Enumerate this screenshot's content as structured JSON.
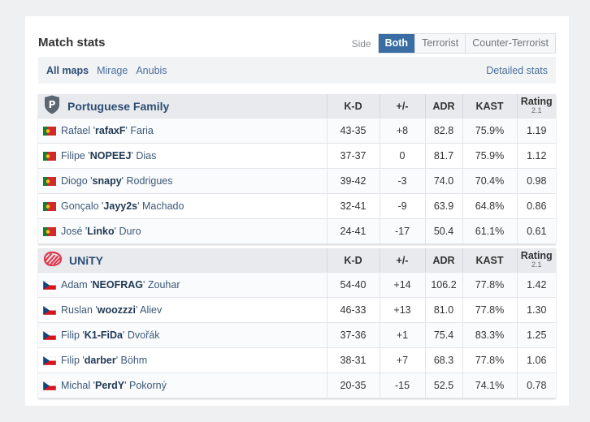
{
  "header": {
    "title": "Match stats"
  },
  "side_filter": {
    "label": "Side",
    "options": [
      "Both",
      "Terrorist",
      "Counter-Terrorist"
    ],
    "active": "Both"
  },
  "maps": {
    "items": [
      "All maps",
      "Mirage",
      "Anubis"
    ],
    "active": "All maps",
    "detailed_link": "Detailed stats"
  },
  "columns": {
    "kd": "K-D",
    "pm": "+/-",
    "adr": "ADR",
    "kast": "KAST",
    "rating": "Rating",
    "rating_version": "2.1"
  },
  "teams": [
    {
      "name": "Portuguese Family",
      "logo": "portuguese-family-shield-logo",
      "players": [
        {
          "first": "Rafael '",
          "nick": "rafaxF",
          "last": "' Faria",
          "flag": "pt-flag",
          "kd": "43-35",
          "pm": "+8",
          "adr": "82.8",
          "kast": "75.9%",
          "rating": "1.19"
        },
        {
          "first": "Filipe '",
          "nick": "NOPEEJ",
          "last": "' Dias",
          "flag": "pt-flag",
          "kd": "37-37",
          "pm": "0",
          "adr": "81.7",
          "kast": "75.9%",
          "rating": "1.12"
        },
        {
          "first": "Diogo '",
          "nick": "snapy",
          "last": "' Rodrigues",
          "flag": "pt-flag",
          "kd": "39-42",
          "pm": "-3",
          "adr": "74.0",
          "kast": "70.4%",
          "rating": "0.98"
        },
        {
          "first": "Gonçalo '",
          "nick": "Jayy2s",
          "last": "' Machado",
          "flag": "pt-flag",
          "kd": "32-41",
          "pm": "-9",
          "adr": "63.9",
          "kast": "64.8%",
          "rating": "0.86"
        },
        {
          "first": "José '",
          "nick": "Linko",
          "last": "' Duro",
          "flag": "pt-flag",
          "kd": "24-41",
          "pm": "-17",
          "adr": "50.4",
          "kast": "61.1%",
          "rating": "0.61"
        }
      ]
    },
    {
      "name": "UNiTY",
      "logo": "unity-logo",
      "players": [
        {
          "first": "Adam '",
          "nick": "NEOFRAG",
          "last": "' Zouhar",
          "flag": "cz-flag",
          "kd": "54-40",
          "pm": "+14",
          "adr": "106.2",
          "kast": "77.8%",
          "rating": "1.42"
        },
        {
          "first": "Ruslan '",
          "nick": "woozzzi",
          "last": "' Aliev",
          "flag": "cz-flag",
          "kd": "46-33",
          "pm": "+13",
          "adr": "81.0",
          "kast": "77.8%",
          "rating": "1.30"
        },
        {
          "first": "Filip '",
          "nick": "K1-FiDa",
          "last": "' Dvořák",
          "flag": "cz-flag",
          "kd": "37-36",
          "pm": "+1",
          "adr": "75.4",
          "kast": "83.3%",
          "rating": "1.25"
        },
        {
          "first": "Filip '",
          "nick": "darber",
          "last": "' Böhm",
          "flag": "cz-flag",
          "kd": "38-31",
          "pm": "+7",
          "adr": "68.3",
          "kast": "77.8%",
          "rating": "1.06"
        },
        {
          "first": "Michal '",
          "nick": "PerdY",
          "last": "' Pokorný",
          "flag": "cz-flag",
          "kd": "20-35",
          "pm": "-15",
          "adr": "52.5",
          "kast": "74.1%",
          "rating": "0.78"
        }
      ]
    }
  ]
}
